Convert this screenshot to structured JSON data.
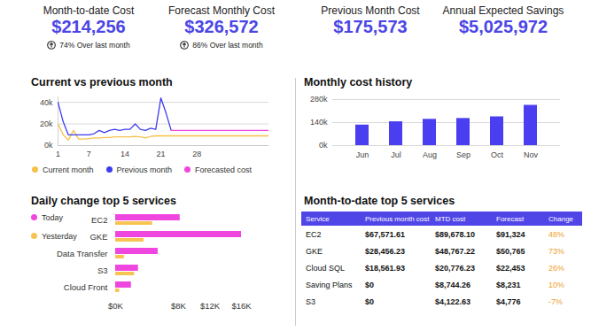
{
  "kpis": [
    {
      "title": "Month-to-date Cost",
      "value": "$214,256",
      "change": "74% Over last month"
    },
    {
      "title": "Forecast Monthly Cost",
      "value": "$326,572",
      "change": "86% Over last month"
    },
    {
      "title": "Previous Month Cost",
      "value": "$175,573"
    },
    {
      "title": "Annual Expected Savings",
      "value": "$5,025,972"
    }
  ],
  "chart_data": [
    {
      "type": "line",
      "title": "Current vs previous month",
      "x": [
        1,
        2,
        3,
        4,
        5,
        6,
        7,
        8,
        9,
        10,
        11,
        12,
        13,
        14,
        15,
        16,
        17,
        18,
        19,
        20,
        21,
        22,
        23,
        24,
        25,
        26,
        27,
        28,
        29,
        30,
        31,
        32,
        33,
        34,
        35,
        36,
        37,
        38,
        39,
        40,
        41,
        42
      ],
      "xlim": [
        1,
        42
      ],
      "xticks": [
        1,
        7,
        14,
        21,
        28
      ],
      "ylim": [
        0,
        45000
      ],
      "yticks": [
        {
          "value": 0,
          "label": "0k"
        },
        {
          "value": 20000,
          "label": "20k"
        },
        {
          "value": 40000,
          "label": "40k"
        }
      ],
      "grid": true,
      "legend": "bottom",
      "series": [
        {
          "name": "Current month",
          "color": "#f7c04a",
          "values": [
            20000,
            10000,
            5000,
            14000,
            6000,
            6000,
            6500,
            7000,
            7000,
            7500,
            7500,
            8000,
            8000,
            8000,
            8000,
            8500,
            8000,
            7000,
            8500,
            9000,
            9000,
            9000,
            9000,
            9000,
            9000,
            9000,
            9000,
            9000,
            9000,
            9000,
            9000,
            9000,
            9000,
            9000,
            9000,
            9000,
            9000,
            9000,
            9000,
            9000,
            9000,
            9000
          ]
        },
        {
          "name": "Previous month",
          "color": "#3d3df0",
          "values": [
            40000,
            22000,
            10000,
            10000,
            10000,
            10000,
            10000,
            11000,
            14000,
            12000,
            14000,
            15000,
            14000,
            15000,
            15000,
            20000,
            15000,
            14000,
            16000,
            15000,
            44000,
            30000,
            14000,
            null,
            null,
            null,
            null,
            null,
            null,
            null,
            null,
            null,
            null,
            null,
            null,
            null,
            null,
            null,
            null,
            null,
            null,
            null
          ]
        },
        {
          "name": "Forecasted cost",
          "color": "#f046e0",
          "values": [
            null,
            null,
            null,
            null,
            null,
            null,
            null,
            null,
            null,
            null,
            null,
            null,
            null,
            null,
            null,
            null,
            null,
            null,
            null,
            null,
            null,
            null,
            14000,
            14000,
            14000,
            14000,
            14000,
            14000,
            14000,
            14000,
            14000,
            14000,
            14000,
            14000,
            14000,
            14000,
            14000,
            14000,
            14000,
            14000,
            14000,
            14000
          ]
        }
      ]
    },
    {
      "type": "bar",
      "title": "Monthly cost history",
      "categories": [
        "Jun",
        "Jul",
        "Aug",
        "Sep",
        "Oct",
        "Nov"
      ],
      "values": [
        125000,
        145000,
        160000,
        165000,
        175000,
        245000
      ],
      "color": "#4a3ff0",
      "ylim": [
        0,
        280000
      ],
      "yticks": [
        {
          "value": 0,
          "label": "0k"
        },
        {
          "value": 140000,
          "label": "140k"
        },
        {
          "value": 280000,
          "label": "280k"
        }
      ],
      "grid": true
    },
    {
      "type": "bar",
      "orientation": "horizontal",
      "title": "Daily change top 5 services",
      "categories": [
        "EC2",
        "GKE",
        "Data Transfer",
        "S3",
        "Cloud Front"
      ],
      "series": [
        {
          "name": "Today",
          "color": "#f046e0",
          "values": [
            8200,
            16000,
            5400,
            2900,
            2000
          ]
        },
        {
          "name": "Yesterday",
          "color": "#f7c451",
          "values": [
            4700,
            3600,
            1100,
            2400,
            500
          ]
        }
      ],
      "xlim": [
        0,
        16000
      ],
      "xticks": [
        {
          "value": 0,
          "label": "$0K"
        },
        {
          "value": 8000,
          "label": "$8K"
        },
        {
          "value": 12000,
          "label": "$12K"
        },
        {
          "value": 16000,
          "label": "$16K"
        }
      ],
      "grid": false,
      "legend": "top-left"
    }
  ],
  "table": {
    "title": "Month-to-date top 5 services",
    "header": [
      "Service",
      "Previous month cost",
      "MTD cost",
      "Forecast",
      "Change"
    ],
    "rows": [
      [
        "EC2",
        "$67,571.61",
        "$89,678.10",
        "$91,324",
        "48%"
      ],
      [
        "GKE",
        "$28,456.23",
        "$48,767.22",
        "$50,765",
        "73%"
      ],
      [
        "Cloud SQL",
        "$18,561.93",
        "$20,776.23",
        "$22,453",
        "26%"
      ],
      [
        "Saving Plans",
        "$0",
        "$8,744.26",
        "$8,231",
        "10%"
      ],
      [
        "S3",
        "$0",
        "$4,122.63",
        "$4,776",
        "-7%"
      ]
    ]
  }
}
